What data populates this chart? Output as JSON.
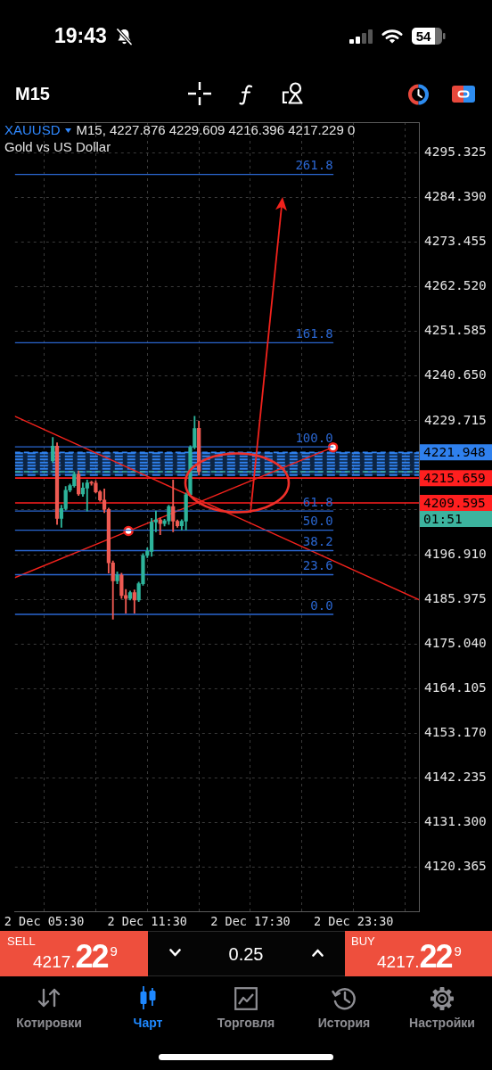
{
  "chart_data": {
    "type": "candlestick",
    "title": "XAUUSD",
    "subtitle": "Gold vs US Dollar",
    "annotations": [
      "19:43",
      "54",
      "M15",
      "M15, 4227.876 4229.609 4216.396 4217.229 0",
      "SELL",
      "4217.22$^{9}$",
      "0.25",
      "BUY",
      "4217.22$^{9}$",
      "Котировки",
      "Чарт",
      "Торговля",
      "История",
      "Настройки",
      "01:51"
    ],
    "x": [
      "--12-02T06:00",
      "--12-02T06:15",
      "--12-02T06:30",
      "--12-02T06:45",
      "--12-02T07:00",
      "--12-02T07:15",
      "--12-02T07:30",
      "--12-02T07:45",
      "--12-02T08:00",
      "--12-02T08:15",
      "--12-02T08:30",
      "--12-02T08:45",
      "--12-02T09:00",
      "--12-02T09:15",
      "--12-02T09:30",
      "--12-02T09:45",
      "--12-02T10:00",
      "--12-02T10:15",
      "--12-02T10:30",
      "--12-02T10:45",
      "--12-02T11:00",
      "--12-02T11:15",
      "--12-02T11:30",
      "--12-02T11:45",
      "--12-02T12:00",
      "--12-02T12:15",
      "--12-02T12:30",
      "--12-02T12:45",
      "--12-02T13:00",
      "--12-02T13:15",
      "--12-02T13:30",
      "--12-02T13:45",
      "--12-02T14:00",
      "--12-02T14:15",
      "--12-02T14:30"
    ],
    "ohlc": [
      [
        4219.9,
        4225.6,
        4219.5,
        4223.5
      ],
      [
        4223.5,
        4224.3,
        4204.3,
        4205.8
      ],
      [
        4205.8,
        4209.0,
        4203.6,
        4208.2
      ],
      [
        4208.2,
        4213.6,
        4207.8,
        4212.7
      ],
      [
        4212.7,
        4214.2,
        4212.3,
        4213.8
      ],
      [
        4213.8,
        4217.2,
        4213.4,
        4216.6
      ],
      [
        4216.6,
        4217.4,
        4211.4,
        4211.8
      ],
      [
        4211.8,
        4214.5,
        4211.2,
        4213.2
      ],
      [
        4213.2,
        4215.2,
        4207.6,
        4214.5
      ],
      [
        4214.5,
        4214.9,
        4213.9,
        4214.4
      ],
      [
        4214.4,
        4215.0,
        4212.0,
        4212.3
      ],
      [
        4212.3,
        4212.6,
        4210.0,
        4210.3
      ],
      [
        4210.3,
        4213.0,
        4207.2,
        4208.0
      ],
      [
        4208.0,
        4208.3,
        4192.4,
        4194.9
      ],
      [
        4194.9,
        4195.4,
        4181.1,
        4190.5
      ],
      [
        4190.5,
        4192.7,
        4189.8,
        4191.9
      ],
      [
        4191.9,
        4192.4,
        4186.2,
        4186.9
      ],
      [
        4186.9,
        4188.4,
        4182.6,
        4186.2
      ],
      [
        4186.2,
        4188.0,
        4185.8,
        4187.6
      ],
      [
        4187.6,
        4188.3,
        4182.6,
        4185.8
      ],
      [
        4185.8,
        4190.2,
        4185.4,
        4189.8
      ],
      [
        4189.8,
        4197.2,
        4189.4,
        4196.7
      ],
      [
        4196.7,
        4198.6,
        4196.2,
        4197.7
      ],
      [
        4197.7,
        4205.8,
        4196.5,
        4204.9
      ],
      [
        4204.9,
        4207.6,
        4202.5,
        4205.4
      ],
      [
        4205.4,
        4205.9,
        4201.8,
        4204.5
      ],
      [
        4204.5,
        4205.6,
        4203.9,
        4205.2
      ],
      [
        4205.2,
        4209.0,
        4204.3,
        4208.7
      ],
      [
        4208.7,
        4215.2,
        4202.5,
        4205.1
      ],
      [
        4205.1,
        4205.4,
        4203.6,
        4204.0
      ],
      [
        4204.0,
        4205.5,
        4202.9,
        4205.1
      ],
      [
        4205.1,
        4212.0,
        4202.9,
        4211.6
      ],
      [
        4211.6,
        4223.6,
        4211.2,
        4223.2
      ],
      [
        4223.2,
        4230.8,
        4222.8,
        4227.8
      ],
      [
        4227.876,
        4229.609,
        4216.396,
        4217.229
      ]
    ],
    "colors": [
      "#2db49b",
      "#ee5a52",
      "#2db49b",
      "#2db49b",
      "#2db49b",
      "#2db49b",
      "#ee5a52",
      "#2db49b",
      "#2db49b",
      "#ee5a52",
      "#ee5a52",
      "#ee5a52",
      "#ee5a52",
      "#ee5a52",
      "#ee5a52",
      "#2db49b",
      "#ee5a52",
      "#ee5a52",
      "#2db49b",
      "#ee5a52",
      "#2db49b",
      "#2db49b",
      "#2db49b",
      "#2db49b",
      "#2db49b",
      "#ee5a52",
      "#2db49b",
      "#2db49b",
      "#ee5a52",
      "#ee5a52",
      "#2db49b",
      "#2db49b",
      "#2db49b",
      "#2db49b",
      "#ee5a52"
    ],
    "series": [
      {
        "type": "line",
        "name": "261.8",
        "color": "#2a66d0",
        "x": [
          "--12-02T03:48",
          "--12-02T22:18"
        ],
        "values": [
          4290.0,
          4290.0
        ]
      },
      {
        "type": "line",
        "name": "161.8",
        "color": "#2a66d0",
        "x": [
          "--12-02T03:48",
          "--12-02T22:18"
        ],
        "values": [
          4248.8,
          4248.8
        ]
      },
      {
        "type": "line",
        "name": "100.0",
        "color": "#2a66d0",
        "x": [
          "--12-02T03:48",
          "--12-02T22:18"
        ],
        "values": [
          4223.3,
          4223.3
        ]
      },
      {
        "type": "line",
        "name": "61.8",
        "color": "#2a66d0",
        "x": [
          "--12-02T03:48",
          "--12-02T22:18"
        ],
        "values": [
          4207.6,
          4207.6
        ]
      },
      {
        "type": "line",
        "name": "50.0",
        "color": "#2a66d0",
        "x": [
          "--12-02T03:48",
          "--12-02T22:18"
        ],
        "values": [
          4202.9,
          4202.9
        ]
      },
      {
        "type": "line",
        "name": "38.2",
        "color": "#2a66d0",
        "x": [
          "--12-02T03:48",
          "--12-02T22:18"
        ],
        "values": [
          4197.9,
          4197.9
        ]
      },
      {
        "type": "line",
        "name": "23.6",
        "color": "#2a66d0",
        "x": [
          "--12-02T03:48",
          "--12-02T22:18"
        ],
        "values": [
          4192.0,
          4192.0
        ]
      },
      {
        "type": "line",
        "name": "0.0",
        "color": "#2a66d0",
        "x": [
          "--12-02T03:48",
          "--12-02T22:18"
        ],
        "values": [
          4182.3,
          4182.3
        ]
      },
      {
        "type": "line",
        "color": "#f2221c",
        "x": [
          "--12-02T03:48",
          "--12-03T03:18"
        ],
        "values": [
          4230.8,
          4185.9
        ]
      },
      {
        "type": "line",
        "color": "#f2221c",
        "marker": "circle",
        "x": [
          "--12-02T03:48",
          "--12-02T10:24",
          "--12-02T22:18"
        ],
        "values": [
          4191.3,
          4202.7,
          4223.2
        ]
      }
    ],
    "xlim": [
      "--12-02T03:48",
      "--12-03T03:18"
    ],
    "xticks": [
      {
        "value": "--12-02T05:30",
        "label": "2 Dec 05:30"
      },
      {
        "value": "--12-02T08:30",
        "label": null
      },
      {
        "value": "--12-02T11:30",
        "label": "2 Dec 11:30"
      },
      {
        "value": "--12-02T14:30",
        "label": null
      },
      {
        "value": "--12-02T17:30",
        "label": "2 Dec 17:30"
      },
      {
        "value": "--12-02T20:30",
        "label": null
      },
      {
        "value": "--12-02T23:30",
        "label": "2 Dec 23:30"
      },
      {
        "value": "--12-03T02:30",
        "label": null
      }
    ],
    "ylim": [
      4109.6,
      4302.8
    ],
    "yticks": [
      4120.365,
      {
        "value": 4131.3,
        "label": "4131.300"
      },
      4142.235,
      {
        "value": 4153.17,
        "label": "4153.170"
      },
      4164.105,
      {
        "value": 4175.04,
        "label": "4175.040"
      },
      4185.975,
      {
        "value": 4196.91,
        "label": "4196.910"
      },
      {
        "value": 4207.845,
        "label": null
      },
      {
        "value": 4218.78,
        "label": null
      },
      4229.715,
      {
        "value": 4240.65,
        "label": "4240.650"
      },
      4251.585,
      {
        "value": 4262.52,
        "label": "4262.520"
      },
      4273.455,
      {
        "value": 4284.39,
        "label": "4284.390"
      },
      4295.325
    ],
    "ref_lines": [
      {
        "axis": "y",
        "value": 4221.948,
        "label": "4221.948",
        "color": "#2f80ed",
        "line_style": "dashed"
      },
      {
        "axis": "y",
        "value": 4217.229,
        "color": "#3cb39e",
        "line_style": "dashed"
      },
      {
        "axis": "y",
        "value": 4215.659,
        "label": "4215.659",
        "color": "#ff1f1f"
      },
      {
        "axis": "y",
        "value": 4209.595,
        "label": "4209.595",
        "color": "#ff1f1f"
      }
    ],
    "bands": [
      {
        "axis": "y",
        "from": 4216.3,
        "to": 4221.948,
        "color": "#2f80ed"
      }
    ],
    "grid": true
  }
}
